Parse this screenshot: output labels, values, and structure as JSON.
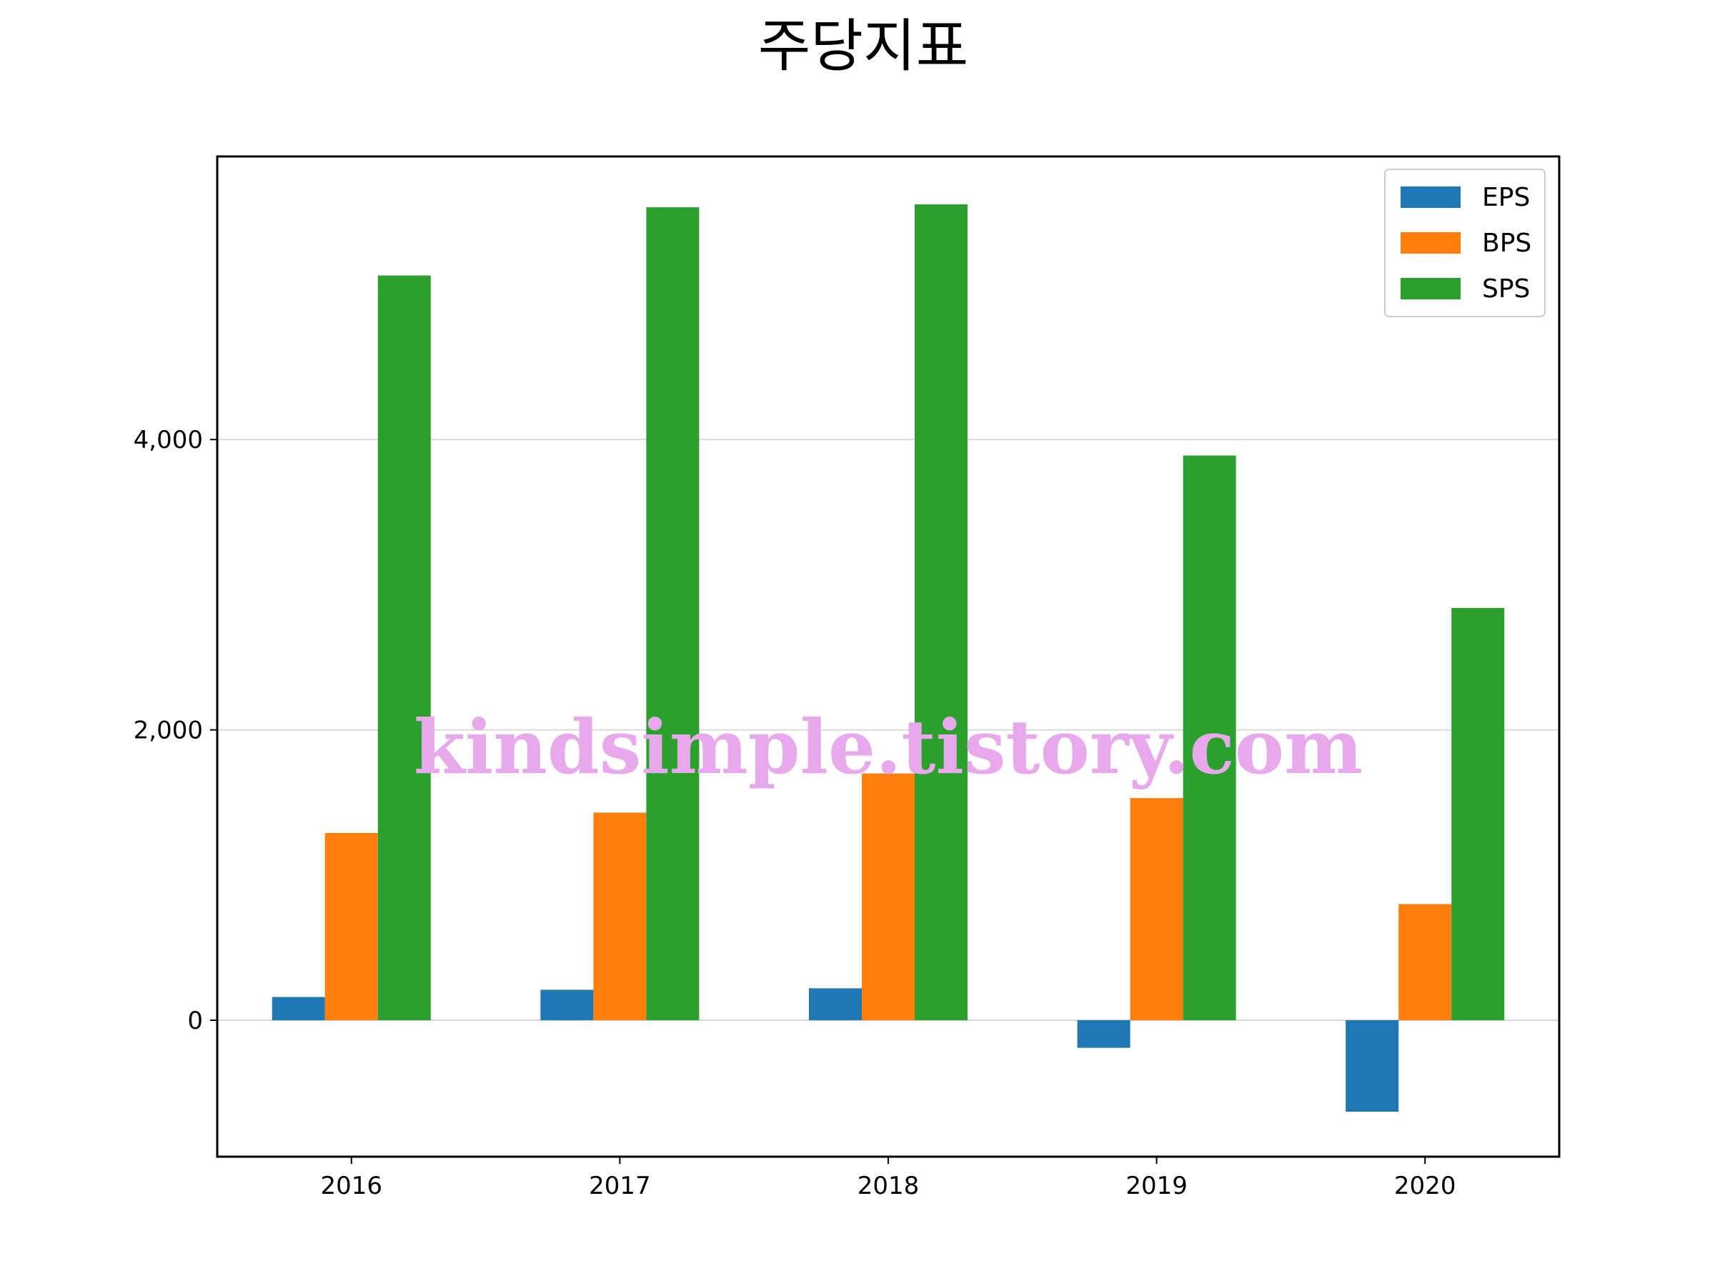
{
  "chart_data": {
    "type": "bar",
    "title": "주당지표",
    "xlabel": "",
    "ylabel": "",
    "categories": [
      "2016",
      "2017",
      "2018",
      "2019",
      "2020"
    ],
    "series": [
      {
        "name": "EPS",
        "color": "#1f77b4",
        "values": [
          160,
          210,
          220,
          -190,
          -630
        ]
      },
      {
        "name": "BPS",
        "color": "#ff7f0e",
        "values": [
          1290,
          1430,
          1700,
          1530,
          800
        ]
      },
      {
        "name": "SPS",
        "color": "#2ca02c",
        "values": [
          5130,
          5600,
          5620,
          3890,
          2840
        ]
      }
    ],
    "ylim": [
      -940,
      5950
    ],
    "yticks": [
      0,
      2000,
      4000
    ],
    "ytick_labels": [
      "0",
      "2,000",
      "4,000"
    ],
    "grid": "horizontal",
    "legend_position": "top-right"
  },
  "watermark": {
    "text": "kindsimple.tistory.com",
    "color": "#e8a8ec"
  }
}
